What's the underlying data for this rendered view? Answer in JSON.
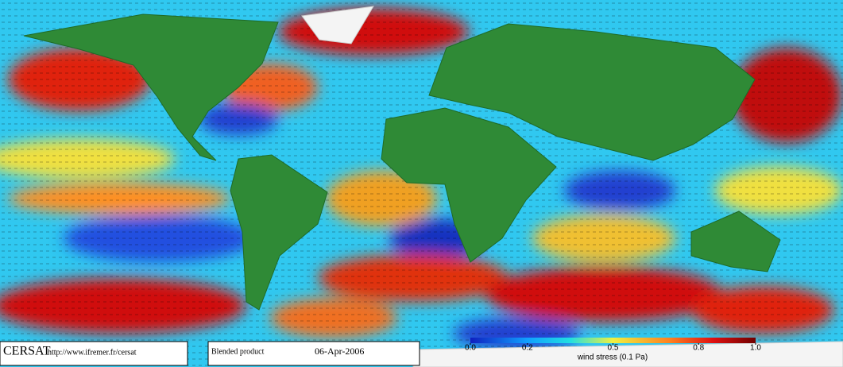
{
  "footer": {
    "brand": "CERSAT",
    "url": "http://www.ifremer.fr/cersat",
    "product": "Blended product",
    "date": "06-Apr-2006"
  },
  "colorbar": {
    "label": "wind stress (0.1 Pa)",
    "range": [
      0,
      1
    ],
    "ticks": [
      {
        "value": 0,
        "label": "0.0"
      },
      0.2,
      0.5,
      0.8,
      {
        "value": 1,
        "label": "1.0"
      }
    ]
  }
}
